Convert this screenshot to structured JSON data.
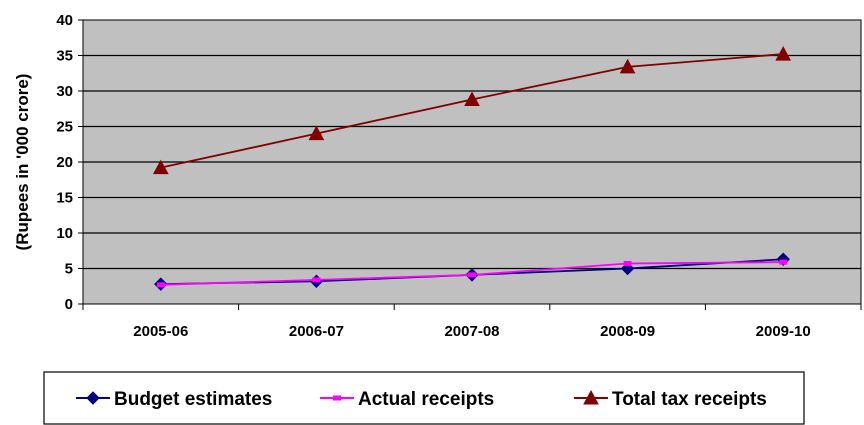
{
  "chart_data": {
    "type": "line",
    "title": "",
    "xlabel": "",
    "ylabel": "(Rupees in '000 crore)",
    "categories": [
      "2005-06",
      "2006-07",
      "2007-08",
      "2008-09",
      "2009-10"
    ],
    "ylim": [
      0,
      40
    ],
    "yticks": [
      0,
      5,
      10,
      15,
      20,
      25,
      30,
      35,
      40
    ],
    "grid": true,
    "legend_position": "bottom",
    "plot_background": "#C0C0C0",
    "series": [
      {
        "name": "Budget estimates",
        "values": [
          2.8,
          3.2,
          4.1,
          5.0,
          6.3
        ],
        "color": "#000080",
        "marker": "diamond"
      },
      {
        "name": "Actual receipts",
        "values": [
          2.7,
          3.4,
          4.1,
          5.7,
          5.9
        ],
        "color": "#FF00FF",
        "marker": "square"
      },
      {
        "name": "Total tax receipts",
        "values": [
          19.2,
          24.0,
          28.8,
          33.4,
          35.2
        ],
        "color": "#800000",
        "marker": "triangle"
      }
    ]
  }
}
